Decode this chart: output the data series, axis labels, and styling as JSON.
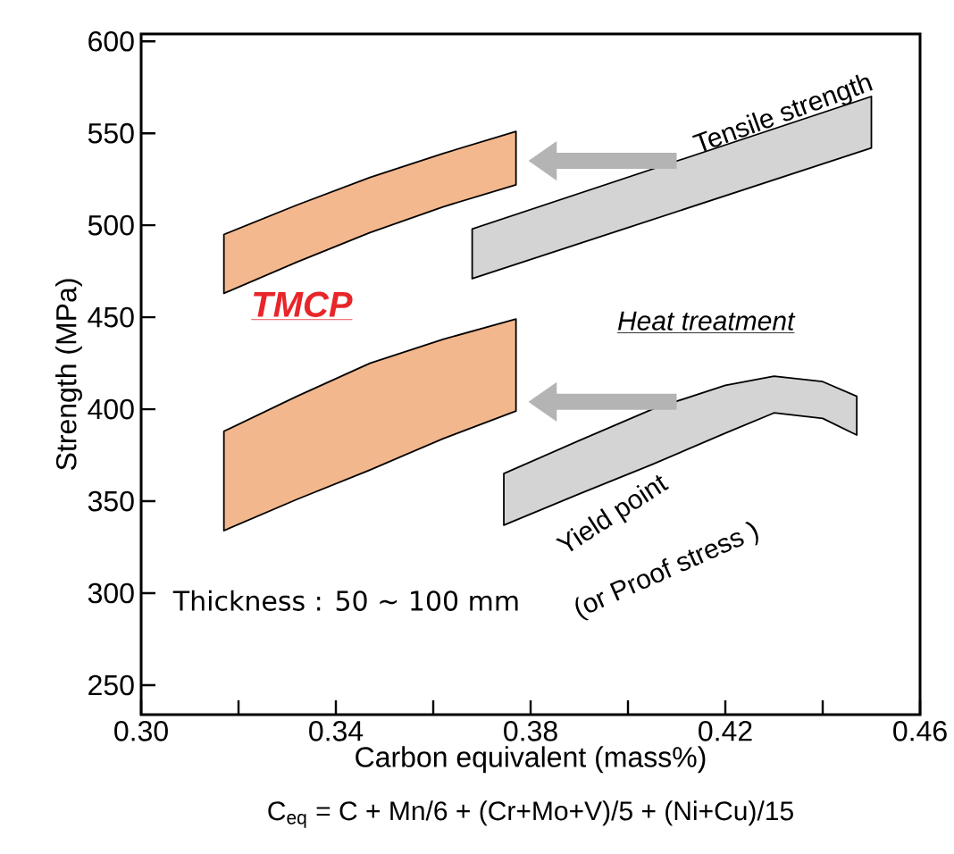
{
  "chart_data": {
    "type": "area",
    "xlabel": "Carbon equivalent (mass%)",
    "ylabel": "Strength  (MPa)",
    "xlim": [
      0.3,
      0.46
    ],
    "ylim": [
      234,
      604
    ],
    "xticks": [
      {
        "value": 0.3,
        "label": "0.30"
      },
      {
        "value": 0.32,
        "label": null
      },
      {
        "value": 0.34,
        "label": "0.34"
      },
      {
        "value": 0.36,
        "label": null
      },
      {
        "value": 0.38,
        "label": "0.38"
      },
      {
        "value": 0.4,
        "label": null
      },
      {
        "value": 0.42,
        "label": "0.42"
      },
      {
        "value": 0.44,
        "label": null
      },
      {
        "value": 0.46,
        "label": "0.46"
      }
    ],
    "yticks": [
      250,
      300,
      350,
      400,
      450,
      500,
      550,
      600
    ],
    "series": [
      {
        "color": "#f4b88f",
        "x": [
          0.317,
          0.332,
          0.347,
          0.362,
          0.377
        ],
        "values": [
          null,
          null,
          null,
          null,
          null
        ],
        "upper": [
          495,
          511,
          526,
          539,
          551
        ],
        "lower": [
          463,
          480,
          496,
          510,
          522
        ]
      },
      {
        "color": "#f3b78e",
        "x": [
          0.317,
          0.332,
          0.347,
          0.362,
          0.377
        ],
        "values": [
          null,
          null,
          null,
          null,
          null
        ],
        "upper": [
          388,
          407,
          425,
          438,
          449
        ],
        "lower": [
          334,
          351,
          367,
          384,
          399
        ]
      },
      {
        "color": "#d4d4d4",
        "x": [
          0.368,
          0.45
        ],
        "values": [
          null,
          null
        ],
        "upper": [
          498,
          570
        ],
        "lower": [
          471,
          542
        ]
      },
      {
        "color": "#d4d4d4",
        "x": [
          0.3745,
          0.39,
          0.405,
          0.42,
          0.43,
          0.44,
          0.447
        ],
        "values": [
          null,
          null,
          null,
          null,
          null,
          null,
          null
        ],
        "upper": [
          365,
          383,
          400,
          413,
          418,
          415,
          407
        ],
        "lower": [
          337,
          354,
          370,
          387,
          398,
          395,
          386
        ]
      }
    ],
    "annotations": [
      "TMCP",
      "Heat treatment",
      "Tensile strength",
      "Yield point",
      "(or Proof stress )",
      "Thickness : 50 ∼ 100 mm",
      "C$_{eq}$ = C + Mn/6 + (Cr+Mo+V)/5 + (Ni+Cu)/15"
    ]
  }
}
